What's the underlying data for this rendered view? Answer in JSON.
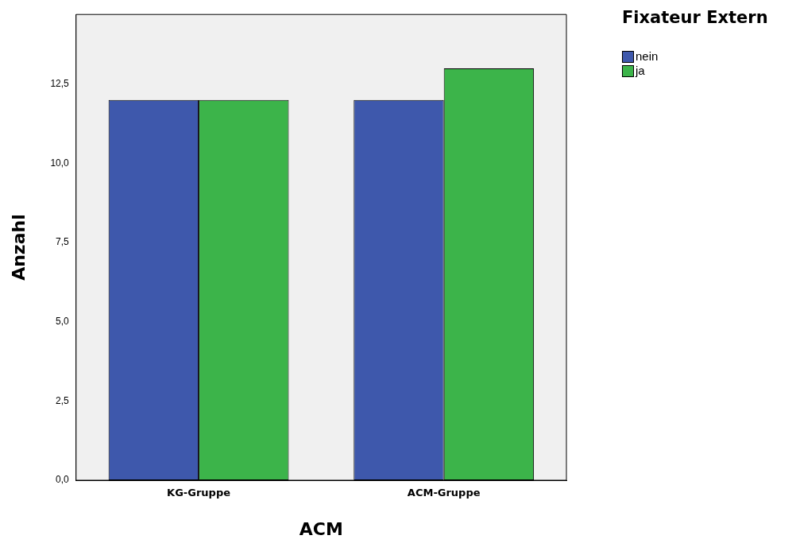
{
  "chart_data": {
    "type": "bar",
    "xlabel": "ACM",
    "ylabel": "Anzahl",
    "legend_title": "Fixateur Extern",
    "categories": [
      "KG-Gruppe",
      "ACM-Gruppe"
    ],
    "series": [
      {
        "name": "nein",
        "color": "#3e58ac",
        "values": [
          12,
          12
        ]
      },
      {
        "name": "ja",
        "color": "#3cb44a",
        "values": [
          12,
          13
        ]
      }
    ],
    "ylim": [
      0,
      14.7
    ],
    "yticks": [
      {
        "value": 0,
        "label": "0,0"
      },
      {
        "value": 2.5,
        "label": "2,5"
      },
      {
        "value": 5,
        "label": "5,0"
      },
      {
        "value": 7.5,
        "label": "7,5"
      },
      {
        "value": 10,
        "label": "10,0"
      },
      {
        "value": 12.5,
        "label": "12,5"
      }
    ],
    "grid": false,
    "legend": "top right"
  }
}
